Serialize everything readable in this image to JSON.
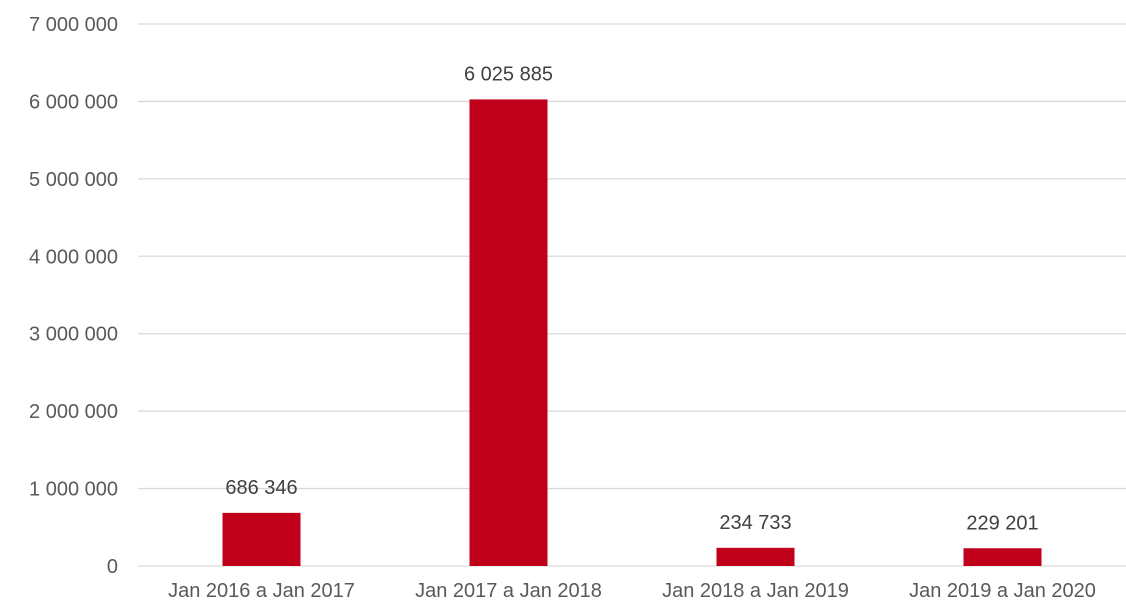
{
  "chart_data": {
    "type": "bar",
    "title": "",
    "xlabel": "",
    "ylabel": "",
    "categories": [
      "Jan 2016 a Jan 2017",
      "Jan 2017 a Jan 2018",
      "Jan 2018 a Jan 2019",
      "Jan 2019 a Jan 2020"
    ],
    "values": [
      686346,
      6025885,
      234733,
      229201
    ],
    "data_labels": [
      "686 346",
      "6 025 885",
      "234 733",
      "229 201"
    ],
    "ylim": [
      0,
      7000000
    ],
    "yticks": [
      0,
      1000000,
      2000000,
      3000000,
      4000000,
      5000000,
      6000000,
      7000000
    ],
    "ytick_labels": [
      "0",
      "1 000 000",
      "2 000 000",
      "3 000 000",
      "4 000 000",
      "5 000 000",
      "6 000 000",
      "7 000 000"
    ],
    "grid": true,
    "legend": "none",
    "bar_color": "#c0001a"
  }
}
